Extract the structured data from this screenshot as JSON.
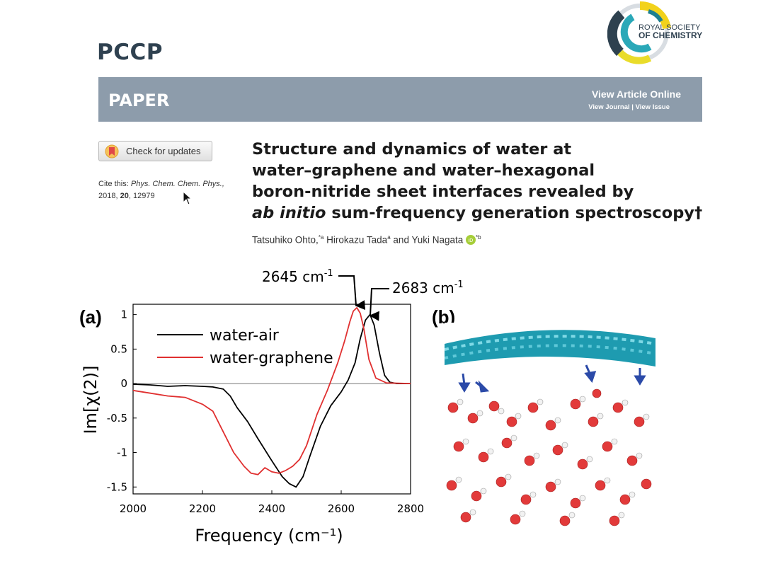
{
  "journal": "PCCP",
  "publisher": {
    "line1": "ROYAL SOCIETY",
    "line2": "OF CHEMISTRY"
  },
  "banner": {
    "label": "PAPER",
    "view_online": "View Article Online",
    "view_journal": "View Journal",
    "view_issue": "View Issue"
  },
  "check_updates": "Check for updates",
  "cite": {
    "prefix": "Cite this:",
    "journal": "Phys. Chem. Chem. Phys.,",
    "year": "2018,",
    "volume": "20",
    "page": "12979"
  },
  "title": {
    "line1": "Structure and dynamics of water at",
    "line2": "water–graphene and water–hexagonal",
    "line3": "boron-nitride sheet interfaces revealed by",
    "line4_italic": "ab initio",
    "line4_rest": " sum-frequency generation spectroscopy†"
  },
  "authors": {
    "a1": "Tatsuhiko Ohto,",
    "a1_sup": "*a",
    "a2": " Hirokazu Tada",
    "a2_sup": "a",
    "a3": " and Yuki Nagata",
    "a3_sup": "*b"
  },
  "figure": {
    "panel_a": "(a)",
    "panel_b": "(b)",
    "annot1": "2645 cm",
    "annot1_sup": "-1",
    "annot2": "2683 cm",
    "annot2_sup": "-1"
  },
  "chart_data": {
    "type": "line",
    "xlabel": "Frequency (cm⁻¹)",
    "ylabel": "Im[χ(2)]",
    "xlim": [
      2000,
      2800
    ],
    "ylim": [
      -1.6,
      1.15
    ],
    "xticks": [
      "2000",
      "2200",
      "2400",
      "2600",
      "2800"
    ],
    "yticks": [
      "1",
      "0.5",
      "0",
      "-0.5",
      "-1",
      "-1.5"
    ],
    "legend_position": "top-left",
    "series": [
      {
        "name": "water-air",
        "color": "#000000",
        "x": [
          2000,
          2050,
          2100,
          2150,
          2200,
          2230,
          2260,
          2280,
          2300,
          2330,
          2360,
          2400,
          2430,
          2450,
          2470,
          2490,
          2510,
          2540,
          2570,
          2600,
          2620,
          2640,
          2655,
          2670,
          2683,
          2695,
          2710,
          2725,
          2740,
          2760,
          2800
        ],
        "y": [
          -0.01,
          -0.02,
          -0.04,
          -0.03,
          -0.04,
          -0.05,
          -0.08,
          -0.18,
          -0.35,
          -0.55,
          -0.8,
          -1.12,
          -1.35,
          -1.45,
          -1.5,
          -1.35,
          -1.05,
          -0.62,
          -0.32,
          -0.12,
          0.05,
          0.3,
          0.65,
          0.92,
          1.0,
          0.85,
          0.45,
          0.12,
          0.02,
          0.0,
          0.0
        ]
      },
      {
        "name": "water-graphene",
        "color": "#e03030",
        "x": [
          2000,
          2050,
          2100,
          2150,
          2200,
          2230,
          2260,
          2290,
          2320,
          2340,
          2360,
          2380,
          2400,
          2420,
          2440,
          2460,
          2480,
          2500,
          2530,
          2560,
          2590,
          2610,
          2625,
          2635,
          2645,
          2655,
          2665,
          2680,
          2700,
          2730,
          2800
        ],
        "y": [
          -0.1,
          -0.14,
          -0.18,
          -0.2,
          -0.3,
          -0.4,
          -0.7,
          -1.0,
          -1.2,
          -1.3,
          -1.32,
          -1.22,
          -1.28,
          -1.3,
          -1.26,
          -1.2,
          -1.1,
          -0.9,
          -0.45,
          -0.1,
          0.3,
          0.62,
          0.9,
          1.05,
          1.1,
          1.02,
          0.8,
          0.35,
          0.08,
          0.01,
          0.0
        ]
      }
    ]
  }
}
